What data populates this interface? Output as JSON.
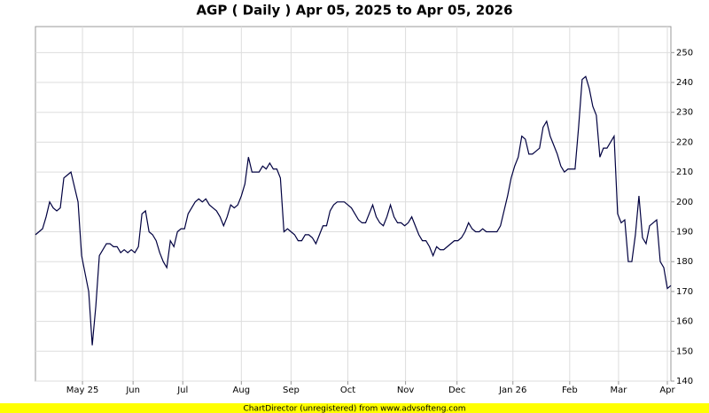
{
  "chart_data": {
    "type": "line",
    "title": "AGP ( Daily ) Apr 05, 2025 to Apr 05, 2026",
    "footer": "ChartDirector (unregistered) from www.advsofteng.com",
    "color": "#000040",
    "grid": true,
    "values": [
      189,
      190,
      191,
      195,
      200,
      198,
      197,
      198,
      208,
      209,
      210,
      205,
      200,
      182,
      176,
      170,
      152,
      165,
      182,
      184,
      186,
      186,
      185,
      185,
      183,
      184,
      183,
      184,
      183,
      185,
      196,
      197,
      190,
      189,
      187,
      183,
      180,
      178,
      187,
      185,
      190,
      191,
      191,
      196,
      198,
      200,
      201,
      200,
      201,
      199,
      198,
      197,
      195,
      192,
      195,
      199,
      198,
      199,
      202,
      206,
      215,
      210,
      210,
      210,
      212,
      211,
      213,
      211,
      211,
      208,
      190,
      191,
      190,
      189,
      187,
      187,
      189,
      189,
      188,
      186,
      189,
      192,
      192,
      197,
      199,
      200,
      200,
      200,
      199,
      198,
      196,
      194,
      193,
      193,
      196,
      199,
      195,
      193,
      192,
      195,
      199,
      195,
      193,
      193,
      192,
      193,
      195,
      192,
      189,
      187,
      187,
      185,
      182,
      185,
      184,
      184,
      185,
      186,
      187,
      187,
      188,
      190,
      193,
      191,
      190,
      190,
      191,
      190,
      190,
      190,
      190,
      192,
      197,
      202,
      208,
      212,
      215,
      222,
      221,
      216,
      216,
      217,
      218,
      225,
      227,
      222,
      219,
      216,
      212,
      210,
      211,
      211,
      211,
      225,
      241,
      242,
      238,
      232,
      229,
      215,
      218,
      218,
      220,
      222,
      196,
      193,
      194,
      180,
      180,
      189,
      202,
      188,
      186,
      192,
      193,
      194,
      180,
      178,
      171,
      172
    ],
    "xlim": [
      0,
      179
    ],
    "xticks": [
      {
        "value": 13.25,
        "label": "May 25"
      },
      {
        "value": 27.5,
        "label": "Jun"
      },
      {
        "value": 41.5,
        "label": "Jul"
      },
      {
        "value": 58,
        "label": "Aug"
      },
      {
        "value": 72,
        "label": "Sep"
      },
      {
        "value": 88,
        "label": "Oct"
      },
      {
        "value": 104.25,
        "label": "Nov"
      },
      {
        "value": 118.75,
        "label": "Dec"
      },
      {
        "value": 134.5,
        "label": "Jan 26"
      },
      {
        "value": 150.5,
        "label": "Feb"
      },
      {
        "value": 164.25,
        "label": "Mar"
      },
      {
        "value": 178,
        "label": "Apr"
      }
    ],
    "ylim": [
      140,
      258.7
    ],
    "yticks": [
      140,
      150,
      160,
      170,
      180,
      190,
      200,
      210,
      220,
      230,
      240,
      250
    ]
  }
}
